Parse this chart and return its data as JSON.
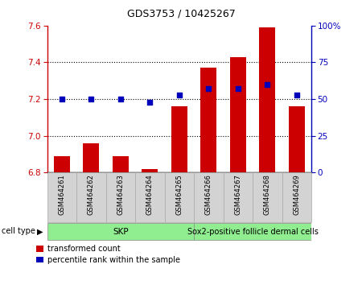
{
  "title": "GDS3753 / 10425267",
  "samples": [
    "GSM464261",
    "GSM464262",
    "GSM464263",
    "GSM464264",
    "GSM464265",
    "GSM464266",
    "GSM464267",
    "GSM464268",
    "GSM464269"
  ],
  "transformed_count": [
    6.89,
    6.96,
    6.89,
    6.82,
    7.16,
    7.37,
    7.43,
    7.59,
    7.16
  ],
  "percentile_rank": [
    50,
    50,
    50,
    48,
    53,
    57,
    57,
    60,
    53
  ],
  "ylim_left": [
    6.8,
    7.6
  ],
  "ylim_right": [
    0,
    100
  ],
  "yticks_left": [
    6.8,
    7.0,
    7.2,
    7.4,
    7.6
  ],
  "yticks_right": [
    0,
    25,
    50,
    75,
    100
  ],
  "ytick_labels_right": [
    "0",
    "25",
    "50",
    "75",
    "100%"
  ],
  "bar_color": "#cc0000",
  "dot_color": "#0000bb",
  "skp_count": 5,
  "cell_group_color": "#90ee90",
  "cell_type_label": "cell type",
  "legend_items": [
    {
      "color": "#cc0000",
      "label": "transformed count"
    },
    {
      "color": "#0000bb",
      "label": "percentile rank within the sample"
    }
  ],
  "bar_bottom": 6.8,
  "bar_width": 0.55,
  "dotted_gridlines": [
    7.0,
    7.2,
    7.4
  ],
  "title_fontsize": 9,
  "tick_fontsize": 7.5,
  "label_fontsize": 6,
  "legend_fontsize": 7
}
